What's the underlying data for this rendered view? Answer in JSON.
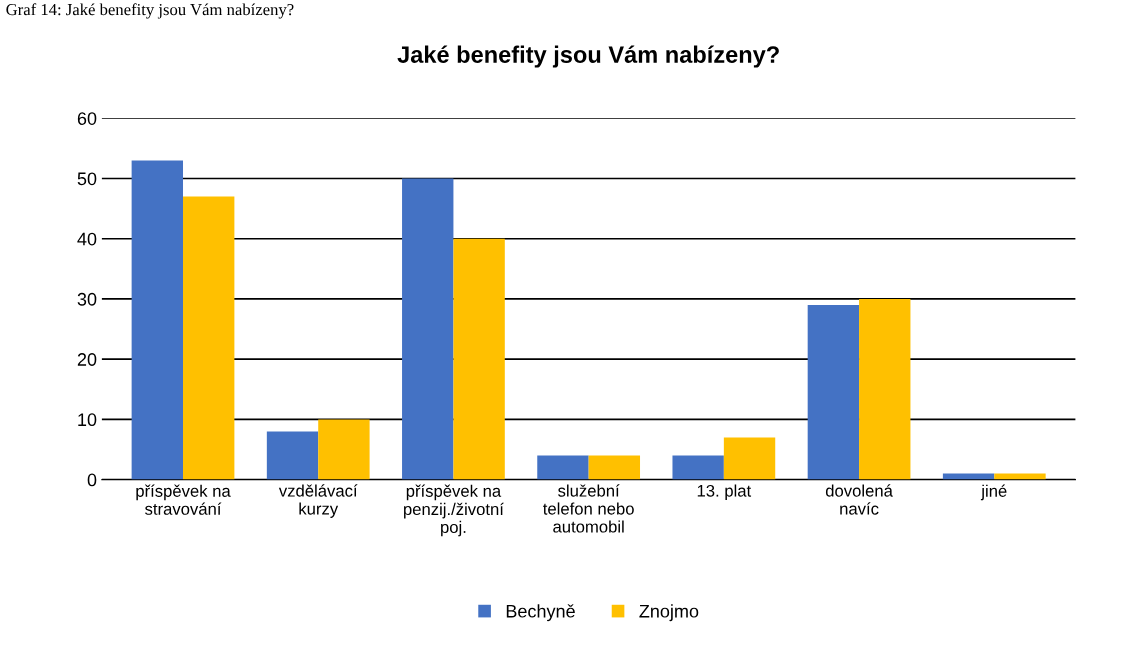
{
  "chart_data": {
    "type": "bar",
    "title": "Jaké benefity jsou Vám nabízeny?",
    "annotations": [
      "Graf 14: Jaké benefity jsou Vám nabízeny?"
    ],
    "categories": [
      "příspěvek na\nstravování",
      "vzdělávací\nkurzy",
      "příspěvek na\npenzij./životní\npoj.",
      "služební\ntelefon nebo\nautomobil",
      "13. plat",
      "dovolená\nnavíc",
      "jiné"
    ],
    "series": [
      {
        "name": "Bechyně",
        "color": "#4472c4",
        "values": [
          53,
          8,
          50,
          4,
          4,
          29,
          1
        ]
      },
      {
        "name": "Znojmo",
        "color": "#ffc000",
        "values": [
          47,
          10,
          40,
          4,
          7,
          30,
          1
        ]
      }
    ],
    "ylim": [
      0,
      60
    ],
    "yticks": [
      0,
      10,
      20,
      30,
      40,
      50,
      60
    ],
    "grid": "y",
    "legend": "bottom"
  }
}
